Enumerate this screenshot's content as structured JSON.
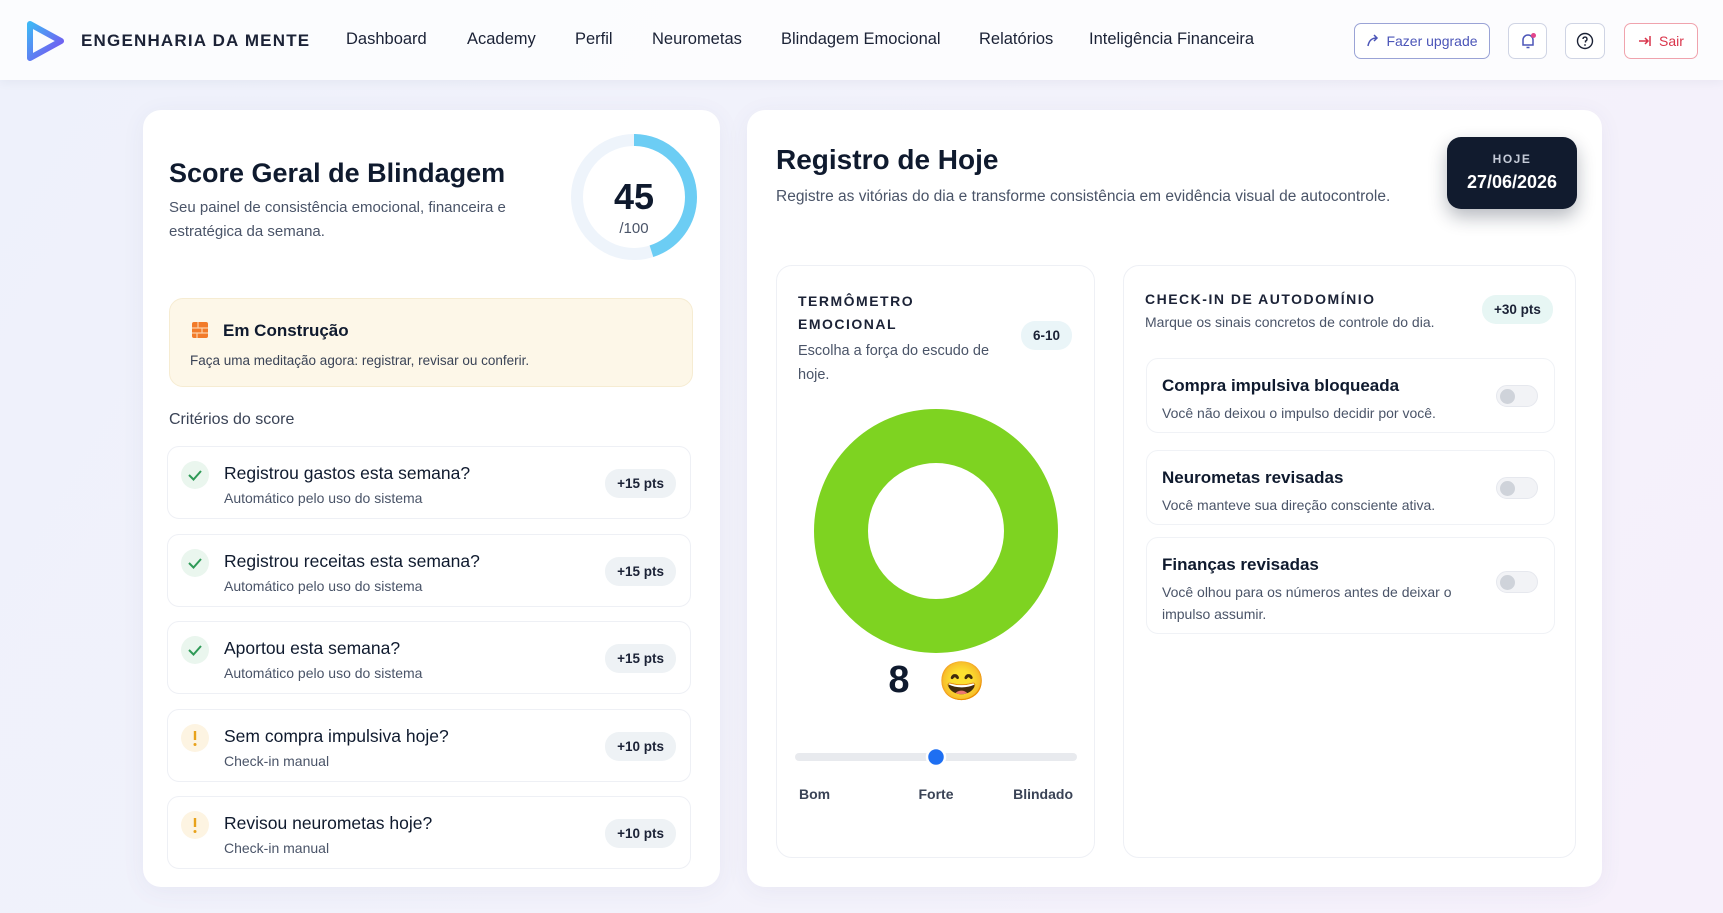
{
  "header": {
    "brand": "ENGENHARIA DA MENTE",
    "nav": [
      "Dashboard",
      "Academy",
      "Perfil",
      "Neurometas",
      "Blindagem Emocional",
      "Relatórios",
      "Inteligência Financeira"
    ],
    "upgrade": "Fazer upgrade",
    "logout": "Sair"
  },
  "score_card": {
    "title": "Score Geral de Blindagem",
    "subtitle": "Seu painel de consistência emocional, financeira e estratégica da semana.",
    "score": 45,
    "score_max": 100,
    "score_max_label": "/100",
    "status": {
      "title": "Em Construção",
      "text": "Faça uma meditação agora: registrar, revisar ou conferir."
    },
    "criteria_label": "Critérios do score",
    "criteria": [
      {
        "icon": "check",
        "title": "Registrou gastos esta semana?",
        "note": "Automático pelo uso do sistema",
        "points": "+15 pts"
      },
      {
        "icon": "check",
        "title": "Registrou receitas esta semana?",
        "note": "Automático pelo uso do sistema",
        "points": "+15 pts"
      },
      {
        "icon": "check",
        "title": "Aportou esta semana?",
        "note": "Automático pelo uso do sistema",
        "points": "+15 pts"
      },
      {
        "icon": "alert",
        "title": "Sem compra impulsiva hoje?",
        "note": "Check-in manual",
        "points": "+10 pts"
      },
      {
        "icon": "alert",
        "title": "Revisou neurometas hoje?",
        "note": "Check-in manual",
        "points": "+10 pts"
      }
    ]
  },
  "today": {
    "title": "Registro de Hoje",
    "subtitle": "Registre as vitórias do dia e transforme consistência em evidência visual de autocontrole.",
    "date_label": "HOJE",
    "date": "27/06/2026",
    "thermometer": {
      "title": "TERMÔMETRO EMOCIONAL",
      "range_label": "6-10",
      "range": [
        6,
        10
      ],
      "hint": "Escolha a força do escudo de hoje.",
      "value": 8,
      "emoji": "😄",
      "color": "#7ed321",
      "scale": [
        "Bom",
        "Forte",
        "Blindado"
      ]
    },
    "checkin": {
      "title": "CHECK-IN DE AUTODOMÍNIO",
      "subtitle": "Marque os sinais concretos de controle do dia.",
      "points": "+30 pts",
      "items": [
        {
          "title": "Compra impulsiva bloqueada",
          "text": "Você não deixou o impulso decidir por você.",
          "checked": false
        },
        {
          "title": "Neurometas revisadas",
          "text": "Você manteve sua direção consciente ativa.",
          "checked": false
        },
        {
          "title": "Finanças revisadas",
          "text": "Você olhou para os números antes de deixar o impulso assumir.",
          "checked": false
        }
      ]
    }
  }
}
